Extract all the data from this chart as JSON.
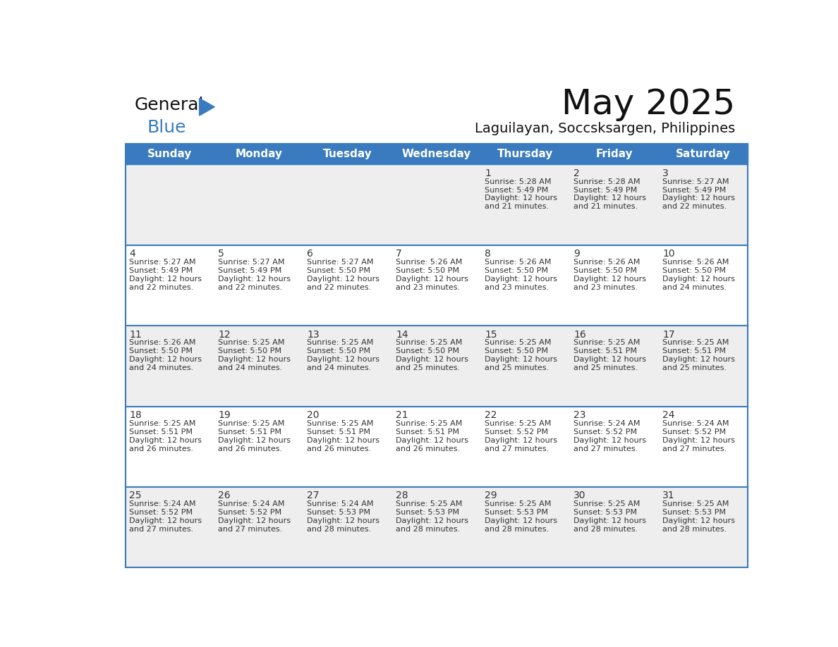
{
  "title": "May 2025",
  "subtitle": "Laguilayan, Soccsksargen, Philippines",
  "header_color": "#3a7bbf",
  "header_text_color": "#ffffff",
  "border_color": "#3a7bbf",
  "text_color": "#333333",
  "days_of_week": [
    "Sunday",
    "Monday",
    "Tuesday",
    "Wednesday",
    "Thursday",
    "Friday",
    "Saturday"
  ],
  "row_bg_colors": [
    "#eeeeee",
    "#ffffff",
    "#eeeeee",
    "#ffffff",
    "#eeeeee"
  ],
  "calendar": [
    [
      null,
      null,
      null,
      null,
      {
        "day": 1,
        "sunrise": "5:28 AM",
        "sunset": "5:49 PM",
        "daylight": "12 hours",
        "daylight2": "and 21 minutes."
      },
      {
        "day": 2,
        "sunrise": "5:28 AM",
        "sunset": "5:49 PM",
        "daylight": "12 hours",
        "daylight2": "and 21 minutes."
      },
      {
        "day": 3,
        "sunrise": "5:27 AM",
        "sunset": "5:49 PM",
        "daylight": "12 hours",
        "daylight2": "and 22 minutes."
      }
    ],
    [
      {
        "day": 4,
        "sunrise": "5:27 AM",
        "sunset": "5:49 PM",
        "daylight": "12 hours",
        "daylight2": "and 22 minutes."
      },
      {
        "day": 5,
        "sunrise": "5:27 AM",
        "sunset": "5:49 PM",
        "daylight": "12 hours",
        "daylight2": "and 22 minutes."
      },
      {
        "day": 6,
        "sunrise": "5:27 AM",
        "sunset": "5:50 PM",
        "daylight": "12 hours",
        "daylight2": "and 22 minutes."
      },
      {
        "day": 7,
        "sunrise": "5:26 AM",
        "sunset": "5:50 PM",
        "daylight": "12 hours",
        "daylight2": "and 23 minutes."
      },
      {
        "day": 8,
        "sunrise": "5:26 AM",
        "sunset": "5:50 PM",
        "daylight": "12 hours",
        "daylight2": "and 23 minutes."
      },
      {
        "day": 9,
        "sunrise": "5:26 AM",
        "sunset": "5:50 PM",
        "daylight": "12 hours",
        "daylight2": "and 23 minutes."
      },
      {
        "day": 10,
        "sunrise": "5:26 AM",
        "sunset": "5:50 PM",
        "daylight": "12 hours",
        "daylight2": "and 24 minutes."
      }
    ],
    [
      {
        "day": 11,
        "sunrise": "5:26 AM",
        "sunset": "5:50 PM",
        "daylight": "12 hours",
        "daylight2": "and 24 minutes."
      },
      {
        "day": 12,
        "sunrise": "5:25 AM",
        "sunset": "5:50 PM",
        "daylight": "12 hours",
        "daylight2": "and 24 minutes."
      },
      {
        "day": 13,
        "sunrise": "5:25 AM",
        "sunset": "5:50 PM",
        "daylight": "12 hours",
        "daylight2": "and 24 minutes."
      },
      {
        "day": 14,
        "sunrise": "5:25 AM",
        "sunset": "5:50 PM",
        "daylight": "12 hours",
        "daylight2": "and 25 minutes."
      },
      {
        "day": 15,
        "sunrise": "5:25 AM",
        "sunset": "5:50 PM",
        "daylight": "12 hours",
        "daylight2": "and 25 minutes."
      },
      {
        "day": 16,
        "sunrise": "5:25 AM",
        "sunset": "5:51 PM",
        "daylight": "12 hours",
        "daylight2": "and 25 minutes."
      },
      {
        "day": 17,
        "sunrise": "5:25 AM",
        "sunset": "5:51 PM",
        "daylight": "12 hours",
        "daylight2": "and 25 minutes."
      }
    ],
    [
      {
        "day": 18,
        "sunrise": "5:25 AM",
        "sunset": "5:51 PM",
        "daylight": "12 hours",
        "daylight2": "and 26 minutes."
      },
      {
        "day": 19,
        "sunrise": "5:25 AM",
        "sunset": "5:51 PM",
        "daylight": "12 hours",
        "daylight2": "and 26 minutes."
      },
      {
        "day": 20,
        "sunrise": "5:25 AM",
        "sunset": "5:51 PM",
        "daylight": "12 hours",
        "daylight2": "and 26 minutes."
      },
      {
        "day": 21,
        "sunrise": "5:25 AM",
        "sunset": "5:51 PM",
        "daylight": "12 hours",
        "daylight2": "and 26 minutes."
      },
      {
        "day": 22,
        "sunrise": "5:25 AM",
        "sunset": "5:52 PM",
        "daylight": "12 hours",
        "daylight2": "and 27 minutes."
      },
      {
        "day": 23,
        "sunrise": "5:24 AM",
        "sunset": "5:52 PM",
        "daylight": "12 hours",
        "daylight2": "and 27 minutes."
      },
      {
        "day": 24,
        "sunrise": "5:24 AM",
        "sunset": "5:52 PM",
        "daylight": "12 hours",
        "daylight2": "and 27 minutes."
      }
    ],
    [
      {
        "day": 25,
        "sunrise": "5:24 AM",
        "sunset": "5:52 PM",
        "daylight": "12 hours",
        "daylight2": "and 27 minutes."
      },
      {
        "day": 26,
        "sunrise": "5:24 AM",
        "sunset": "5:52 PM",
        "daylight": "12 hours",
        "daylight2": "and 27 minutes."
      },
      {
        "day": 27,
        "sunrise": "5:24 AM",
        "sunset": "5:53 PM",
        "daylight": "12 hours",
        "daylight2": "and 28 minutes."
      },
      {
        "day": 28,
        "sunrise": "5:25 AM",
        "sunset": "5:53 PM",
        "daylight": "12 hours",
        "daylight2": "and 28 minutes."
      },
      {
        "day": 29,
        "sunrise": "5:25 AM",
        "sunset": "5:53 PM",
        "daylight": "12 hours",
        "daylight2": "and 28 minutes."
      },
      {
        "day": 30,
        "sunrise": "5:25 AM",
        "sunset": "5:53 PM",
        "daylight": "12 hours",
        "daylight2": "and 28 minutes."
      },
      {
        "day": 31,
        "sunrise": "5:25 AM",
        "sunset": "5:53 PM",
        "daylight": "12 hours",
        "daylight2": "and 28 minutes."
      }
    ]
  ]
}
